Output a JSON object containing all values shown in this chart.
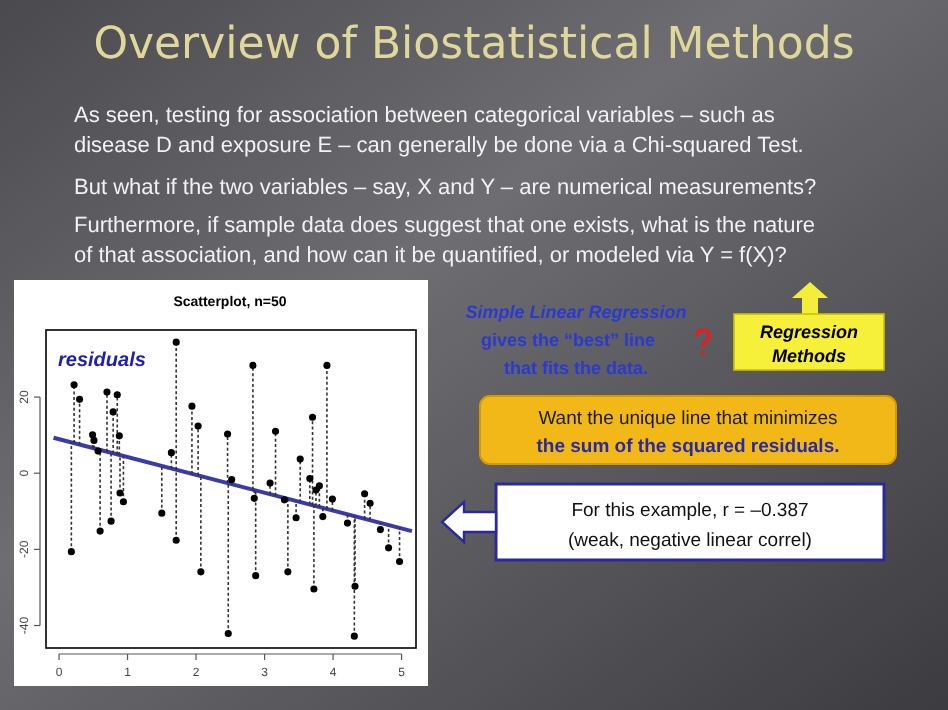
{
  "chart_data": {
    "type": "scatter",
    "title": "Overview of Biostatistical Methods",
    "subtitle": "Scatterplot, n=50",
    "xlim": [
      -0.19,
      5.21
    ],
    "ylim": [
      -45.9,
      37.6
    ],
    "xticks": [
      0,
      1,
      2,
      3,
      4,
      5
    ],
    "yticks": [
      -40,
      -20,
      0,
      20
    ],
    "series": [
      {
        "type": "scatter",
        "marker": "circle",
        "color": "#000000",
        "x": [
          0.22,
          0.18,
          0.3,
          0.49,
          0.51,
          0.57,
          0.6,
          0.7,
          0.76,
          0.79,
          0.85,
          0.88,
          0.89,
          0.94,
          1.5,
          1.64,
          1.71,
          1.71,
          1.94,
          2.03,
          2.07,
          2.46,
          2.47,
          2.52,
          2.83,
          2.85,
          2.87,
          3.08,
          3.16,
          3.29,
          3.34,
          3.46,
          3.52,
          3.66,
          3.7,
          3.72,
          3.75,
          3.8,
          3.85,
          3.91,
          3.99,
          4.21,
          4.32,
          4.31,
          4.46,
          4.54,
          4.69,
          4.81,
          4.97
        ],
        "values": [
          23.2,
          -20.6,
          19.4,
          10.1,
          8.6,
          5.8,
          -15.2,
          21.3,
          -12.6,
          16.1,
          20.6,
          9.8,
          -5.2,
          -7.5,
          -10.5,
          5.4,
          34.4,
          -17.6,
          17.6,
          12.4,
          -25.9,
          10.3,
          -42.1,
          -1.7,
          28.3,
          -6.6,
          -26.9,
          -2.6,
          11.0,
          -7.0,
          -25.9,
          -11.7,
          3.7,
          -1.4,
          14.7,
          -30.4,
          -4.4,
          -3.3,
          -11.4,
          28.3,
          -6.8,
          -13.1,
          -29.7,
          -42.8,
          -5.4,
          -7.9,
          -14.8,
          -19.6,
          -23.2
        ],
        "errors": [
          [
            7.9,
            23.2
          ],
          [
            -20.6,
            8.1
          ],
          [
            7.5,
            19.4
          ],
          [
            6.6,
            10.1
          ],
          [
            6.5,
            8.6
          ],
          [
            5.8,
            6.2
          ],
          [
            -15.2,
            6.1
          ],
          [
            5.6,
            21.3
          ],
          [
            -12.6,
            5.3
          ],
          [
            5.2,
            16.1
          ],
          [
            4.9,
            20.6
          ],
          [
            4.8,
            9.8
          ],
          [
            -5.2,
            4.7
          ],
          [
            -7.5,
            4.5
          ],
          [
            -10.5,
            1.9
          ],
          [
            1.2,
            5.4
          ],
          [
            0.9,
            34.4
          ],
          [
            -17.6,
            0.9
          ],
          [
            -0.2,
            17.6
          ],
          [
            -0.6,
            12.4
          ],
          [
            -25.9,
            -0.8
          ],
          [
            -2.6,
            10.3
          ],
          [
            -42.1,
            -2.7
          ],
          [
            -2.9,
            -1.7
          ],
          [
            -4.3,
            28.3
          ],
          [
            -6.6,
            -4.4
          ],
          [
            -26.9,
            -4.5
          ],
          [
            -5.5,
            -2.6
          ],
          [
            -5.9,
            11.0
          ],
          [
            -7.0,
            -6.5
          ],
          [
            -25.9,
            -6.7
          ],
          [
            -11.7,
            -7.3
          ],
          [
            -7.6,
            3.7
          ],
          [
            -8.2,
            -1.4
          ],
          [
            -8.4,
            14.7
          ],
          [
            -30.4,
            -8.5
          ],
          [
            -8.7,
            -4.4
          ],
          [
            -8.9,
            -3.3
          ],
          [
            -11.4,
            -9.1
          ],
          [
            -9.4,
            28.3
          ],
          [
            -9.8,
            -6.8
          ],
          [
            -13.1,
            -10.8
          ],
          [
            -29.7,
            -11.3
          ],
          [
            -42.8,
            -11.3
          ],
          [
            -12.0,
            -5.4
          ],
          [
            -12.3,
            -7.9
          ],
          [
            -14.8,
            -13.0
          ],
          [
            -19.6,
            -13.6
          ],
          [
            -23.2,
            -14.4
          ]
        ]
      },
      {
        "type": "line",
        "color": "#3a3aa8",
        "x": [
          -0.08,
          5.15
        ],
        "values": [
          9.3,
          -15.2
        ]
      }
    ],
    "annotations": [
      "As seen, testing for association between categorical variables – such as",
      "disease D and exposure E – can generally be done via a Chi-squared Test.",
      "But what if the two variables – say, X and Y – are numerical measurements?",
      "Furthermore, if sample data does suggest that one exists, what is the nature",
      "of that association, and how can it be quantified, or modeled via Y = f(X)?",
      "residuals",
      "Simple Linear Regression",
      "gives the “best” line",
      "that fits the data.",
      "Regression",
      "Methods",
      "Want the unique line that minimizes",
      "the sum of the squared residuals.",
      "For this example, r = –0.387",
      "(weak, negative linear correl)"
    ]
  }
}
